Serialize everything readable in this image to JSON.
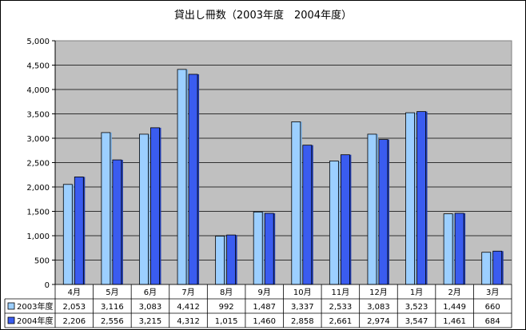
{
  "chart_data": {
    "type": "bar",
    "title": "貸出し冊数（2003年度　2004年度）",
    "categories": [
      "4月",
      "5月",
      "6月",
      "7月",
      "8月",
      "9月",
      "10月",
      "11月",
      "12月",
      "1月",
      "2月",
      "3月"
    ],
    "series": [
      {
        "name": "2003年度",
        "color": "#9ccfff",
        "values": [
          2053,
          3116,
          3083,
          4412,
          992,
          1487,
          3337,
          2533,
          3083,
          3523,
          1449,
          660
        ],
        "labels": [
          "2,053",
          "3,116",
          "3,083",
          "4,412",
          "992",
          "1,487",
          "3,337",
          "2,533",
          "3,083",
          "3,523",
          "1,449",
          "660"
        ]
      },
      {
        "name": "2004年度",
        "color": "#3a5cf0",
        "values": [
          2206,
          2556,
          3215,
          4312,
          1015,
          1460,
          2858,
          2661,
          2974,
          3547,
          1461,
          684
        ],
        "labels": [
          "2,206",
          "2,556",
          "3,215",
          "4,312",
          "1,015",
          "1,460",
          "2,858",
          "2,661",
          "2,974",
          "3,547",
          "1,461",
          "684"
        ]
      }
    ],
    "ylim": [
      0,
      5000
    ],
    "yticks": [
      "0",
      "500",
      "1,000",
      "1,500",
      "2,000",
      "2,500",
      "3,000",
      "3,500",
      "4,000",
      "4,500",
      "5,000"
    ],
    "grid": true,
    "legend": "data-table"
  }
}
